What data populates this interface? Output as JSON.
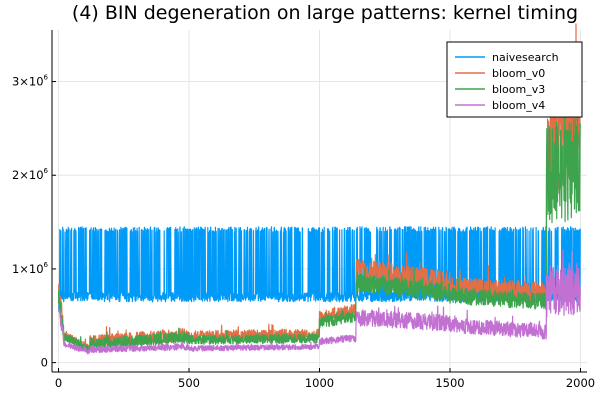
{
  "chart_data": {
    "type": "line",
    "title": "(4) BIN degeneration on large patterns: kernel timing",
    "xlabel": "",
    "ylabel": "",
    "xlim": [
      -25,
      2025
    ],
    "ylim": [
      -100000,
      3550000
    ],
    "x_ticks": [
      0,
      500,
      1000,
      1500,
      2000
    ],
    "x_tick_labels": [
      "0",
      "500",
      "1000",
      "1500",
      "2000"
    ],
    "y_ticks": [
      0,
      1000000,
      2000000,
      3000000
    ],
    "y_tick_labels": [
      {
        "base": "0",
        "exp": ""
      },
      {
        "base": "1×10",
        "exp": "6"
      },
      {
        "base": "2×10",
        "exp": "6"
      },
      {
        "base": "3×10",
        "exp": "6"
      }
    ],
    "grid": true,
    "legend_position": "top-right",
    "series": [
      {
        "name": "naivesearch",
        "color": "#009af9",
        "pattern": "spiky",
        "segments": [
          {
            "x0": 0,
            "x1": 2000,
            "base": 700000,
            "spike_top": 1450000,
            "spike_prob": 0.28,
            "noise": 50000
          }
        ]
      },
      {
        "name": "bloom_v0",
        "color": "#e26f46",
        "pattern": "noisy",
        "segments": [
          {
            "x0": 0,
            "x1": 20,
            "base_from": 800000,
            "base_to": 300000,
            "noise": 120000
          },
          {
            "x0": 20,
            "x1": 120,
            "base_from": 300000,
            "base_to": 140000,
            "noise": 50000
          },
          {
            "x0": 120,
            "x1": 500,
            "base_from": 220000,
            "base_to": 300000,
            "noise": 70000
          },
          {
            "x0": 500,
            "x1": 1000,
            "base_from": 280000,
            "base_to": 300000,
            "noise": 60000
          },
          {
            "x0": 1000,
            "x1": 1140,
            "base_from": 480000,
            "base_to": 560000,
            "noise": 70000
          },
          {
            "x0": 1140,
            "x1": 1500,
            "base_from": 1000000,
            "base_to": 850000,
            "noise": 120000
          },
          {
            "x0": 1500,
            "x1": 1870,
            "base_from": 800000,
            "base_to": 750000,
            "noise": 110000
          },
          {
            "x0": 1870,
            "x1": 2000,
            "base_from": 2400000,
            "base_to": 2600000,
            "noise": 700000
          }
        ]
      },
      {
        "name": "bloom_v3",
        "color": "#3da44d",
        "pattern": "noisy",
        "segments": [
          {
            "x0": 0,
            "x1": 20,
            "base_from": 700000,
            "base_to": 300000,
            "noise": 100000
          },
          {
            "x0": 20,
            "x1": 120,
            "base_from": 280000,
            "base_to": 130000,
            "noise": 45000
          },
          {
            "x0": 120,
            "x1": 500,
            "base_from": 200000,
            "base_to": 270000,
            "noise": 60000
          },
          {
            "x0": 500,
            "x1": 1000,
            "base_from": 240000,
            "base_to": 260000,
            "noise": 50000
          },
          {
            "x0": 1000,
            "x1": 1140,
            "base_from": 420000,
            "base_to": 500000,
            "noise": 60000
          },
          {
            "x0": 1140,
            "x1": 1500,
            "base_from": 850000,
            "base_to": 750000,
            "noise": 100000
          },
          {
            "x0": 1500,
            "x1": 1870,
            "base_from": 720000,
            "base_to": 650000,
            "noise": 90000
          },
          {
            "x0": 1870,
            "x1": 2000,
            "base_from": 2000000,
            "base_to": 2100000,
            "noise": 550000
          }
        ]
      },
      {
        "name": "bloom_v4",
        "color": "#c271d2",
        "pattern": "noisy",
        "segments": [
          {
            "x0": 0,
            "x1": 20,
            "base_from": 600000,
            "base_to": 250000,
            "noise": 80000
          },
          {
            "x0": 20,
            "x1": 120,
            "base_from": 200000,
            "base_to": 110000,
            "noise": 30000
          },
          {
            "x0": 120,
            "x1": 500,
            "base_from": 140000,
            "base_to": 170000,
            "noise": 35000
          },
          {
            "x0": 500,
            "x1": 1000,
            "base_from": 150000,
            "base_to": 170000,
            "noise": 30000
          },
          {
            "x0": 1000,
            "x1": 1140,
            "base_from": 230000,
            "base_to": 260000,
            "noise": 40000
          },
          {
            "x0": 1140,
            "x1": 1500,
            "base_from": 480000,
            "base_to": 420000,
            "noise": 90000
          },
          {
            "x0": 1500,
            "x1": 1870,
            "base_from": 400000,
            "base_to": 330000,
            "noise": 80000
          },
          {
            "x0": 1870,
            "x1": 2000,
            "base_from": 750000,
            "base_to": 800000,
            "noise": 280000
          }
        ]
      }
    ]
  }
}
